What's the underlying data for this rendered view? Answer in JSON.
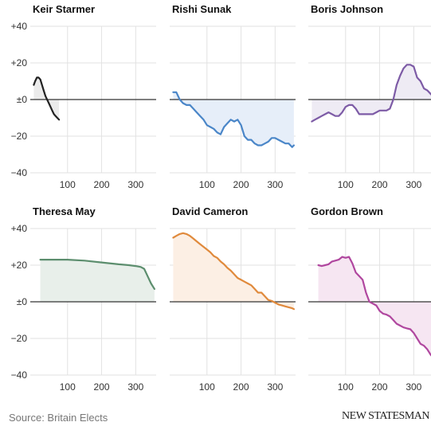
{
  "source": "Source: Britain Elects",
  "brand": "NEW STATESMAN",
  "colors": {
    "axis": "#333333",
    "grid": "#e2e2e2",
    "tick_text": "#333333"
  },
  "chart_data": [
    {
      "type": "area",
      "title": "Keir Starmer",
      "color": "#222222",
      "fill": "#ebebeb",
      "xlim": [
        0,
        360
      ],
      "ylim": [
        -40,
        40
      ],
      "xticks": [
        100,
        200,
        300
      ],
      "yticks": [
        40,
        20,
        0,
        -20,
        -40
      ],
      "ytick_labels": [
        "+40",
        "+20",
        "±0",
        "−20",
        "−40"
      ],
      "x": [
        1,
        5,
        10,
        15,
        20,
        25,
        30,
        35,
        40,
        45,
        50,
        55,
        60,
        65,
        70,
        75
      ],
      "y": [
        8,
        10,
        12,
        12,
        11,
        8,
        5,
        2,
        0,
        -2,
        -4,
        -6,
        -8,
        -9,
        -10,
        -11
      ]
    },
    {
      "type": "area",
      "title": "Rishi Sunak",
      "color": "#4a86c8",
      "fill": "#e6eef9",
      "xlim": [
        0,
        360
      ],
      "ylim": [
        -40,
        40
      ],
      "xticks": [
        100,
        200,
        300
      ],
      "yticks": [
        40,
        20,
        0,
        -20,
        -40
      ],
      "ytick_labels": [
        "+40",
        "+20",
        "±0",
        "−20",
        "−40"
      ],
      "x": [
        1,
        10,
        20,
        30,
        40,
        50,
        60,
        70,
        80,
        90,
        100,
        110,
        120,
        130,
        140,
        150,
        160,
        170,
        180,
        190,
        200,
        210,
        220,
        230,
        240,
        250,
        260,
        270,
        280,
        290,
        300,
        310,
        320,
        330,
        340,
        350,
        355
      ],
      "y": [
        4,
        4,
        0,
        -2,
        -3,
        -3,
        -5,
        -7,
        -9,
        -11,
        -14,
        -15,
        -16,
        -18,
        -19,
        -15,
        -13,
        -11,
        -12,
        -11,
        -14,
        -20,
        -22,
        -22,
        -24,
        -25,
        -25,
        -24,
        -23,
        -21,
        -21,
        -22,
        -23,
        -24,
        -24,
        -26,
        -25
      ]
    },
    {
      "type": "area",
      "title": "Boris Johnson",
      "color": "#7d5ba6",
      "fill": "#eeebf4",
      "xlim": [
        0,
        360
      ],
      "ylim": [
        -40,
        40
      ],
      "xticks": [
        100,
        200,
        300
      ],
      "yticks": [
        40,
        20,
        0,
        -20,
        -40
      ],
      "ytick_labels": [
        "+40",
        "+20",
        "±0",
        "−20",
        "−40"
      ],
      "x": [
        1,
        10,
        20,
        30,
        40,
        50,
        60,
        70,
        80,
        90,
        100,
        110,
        120,
        130,
        140,
        150,
        160,
        170,
        180,
        190,
        200,
        210,
        220,
        230,
        240,
        250,
        260,
        270,
        280,
        290,
        300,
        310,
        320,
        330,
        340,
        350,
        355
      ],
      "y": [
        -12,
        -11,
        -10,
        -9,
        -8,
        -7,
        -8,
        -9,
        -9,
        -7,
        -4,
        -3,
        -3,
        -5,
        -8,
        -8,
        -8,
        -8,
        -8,
        -7,
        -6,
        -6,
        -6,
        -5,
        0,
        8,
        13,
        17,
        19,
        19,
        18,
        12,
        10,
        6,
        5,
        3,
        2
      ]
    },
    {
      "type": "area",
      "title": "Theresa May",
      "color": "#5c8e6e",
      "fill": "#e8efea",
      "xlim": [
        0,
        360
      ],
      "ylim": [
        -40,
        40
      ],
      "xticks": [
        100,
        200,
        300
      ],
      "yticks": [
        40,
        20,
        0,
        -20,
        -40
      ],
      "ytick_labels": [
        "+40",
        "+20",
        "±0",
        "−20",
        "−40"
      ],
      "x": [
        20,
        50,
        100,
        150,
        200,
        250,
        280,
        300,
        315,
        325,
        335,
        345,
        355
      ],
      "y": [
        23,
        23,
        23,
        22.5,
        21.5,
        20.5,
        20,
        19.5,
        19,
        18,
        14,
        10,
        7
      ]
    },
    {
      "type": "area",
      "title": "David Cameron",
      "color": "#e08a3c",
      "fill": "#fcefe4",
      "xlim": [
        0,
        360
      ],
      "ylim": [
        -40,
        40
      ],
      "xticks": [
        100,
        200,
        300
      ],
      "yticks": [
        40,
        20,
        0,
        -20,
        -40
      ],
      "ytick_labels": [
        "+40",
        "+20",
        "±0",
        "−20",
        "−40"
      ],
      "x": [
        1,
        10,
        20,
        30,
        40,
        50,
        60,
        70,
        80,
        90,
        100,
        110,
        120,
        130,
        140,
        150,
        160,
        170,
        180,
        190,
        200,
        210,
        220,
        230,
        240,
        250,
        260,
        270,
        280,
        290,
        300,
        310,
        320,
        330,
        340,
        350,
        355
      ],
      "y": [
        35,
        36,
        37,
        37.5,
        37,
        36,
        34.5,
        33,
        31.5,
        30,
        28.5,
        27,
        25,
        24,
        22,
        20.5,
        18.5,
        17,
        15,
        13,
        12,
        11,
        10,
        9,
        7,
        5,
        5,
        3,
        1,
        0.5,
        -0.5,
        -1.5,
        -2,
        -2.5,
        -3,
        -3.5,
        -4
      ]
    },
    {
      "type": "area",
      "title": "Gordon Brown",
      "color": "#b0479f",
      "fill": "#f6e6f2",
      "xlim": [
        0,
        360
      ],
      "ylim": [
        -40,
        40
      ],
      "xticks": [
        100,
        200,
        300
      ],
      "yticks": [
        40,
        20,
        0,
        -20,
        -40
      ],
      "ytick_labels": [
        "+40",
        "+20",
        "±0",
        "−20",
        "−40"
      ],
      "x": [
        20,
        30,
        40,
        50,
        60,
        70,
        80,
        90,
        100,
        110,
        120,
        130,
        140,
        150,
        160,
        170,
        180,
        190,
        200,
        210,
        220,
        230,
        240,
        250,
        260,
        270,
        280,
        290,
        300,
        310,
        320,
        330,
        340,
        350,
        355
      ],
      "y": [
        20,
        19.5,
        20,
        20.5,
        22,
        22.5,
        23,
        24.5,
        24,
        24.5,
        21,
        16,
        14,
        12,
        5,
        0,
        -1,
        -2,
        -5,
        -6.5,
        -7,
        -8,
        -10,
        -12,
        -13,
        -14,
        -14.5,
        -15,
        -17,
        -20,
        -23,
        -24,
        -26,
        -29,
        -30
      ]
    }
  ]
}
